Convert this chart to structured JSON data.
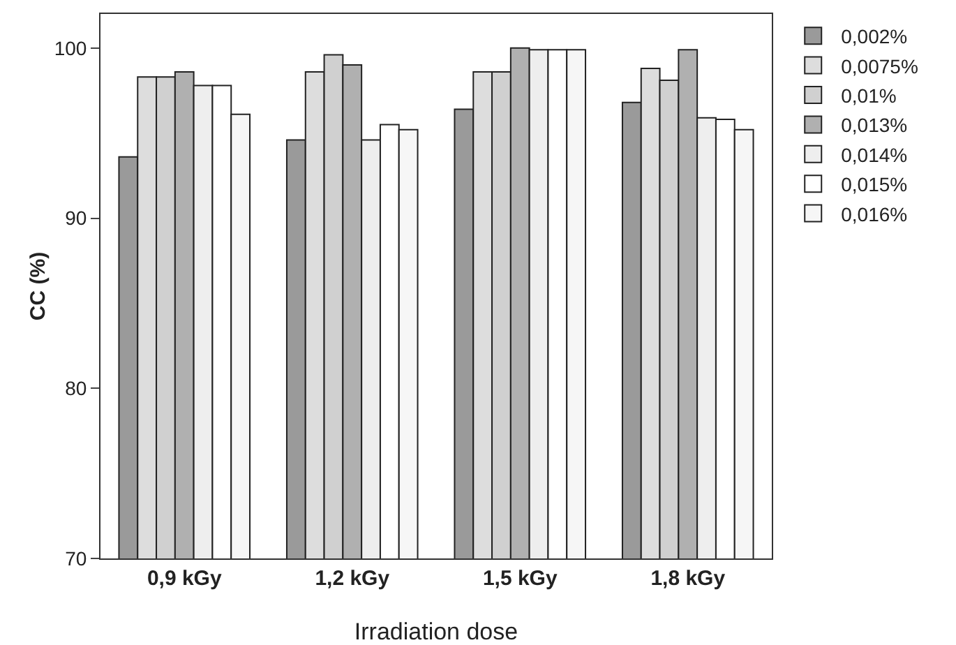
{
  "chart_data": {
    "type": "bar",
    "xlabel": "Irradiation dose",
    "ylabel": "CC (%)",
    "categories": [
      "0,9 kGy",
      "1,2 kGy",
      "1,5 kGy",
      "1,8 kGy"
    ],
    "series": [
      {
        "name": "0,002%",
        "color": "#9a9a9a",
        "values": [
          93.6,
          94.6,
          96.4,
          96.8
        ]
      },
      {
        "name": "0,0075%",
        "color": "#dddddd",
        "values": [
          98.3,
          98.6,
          98.6,
          98.8
        ]
      },
      {
        "name": "0,01%",
        "color": "#d0d0d0",
        "values": [
          98.3,
          99.6,
          98.6,
          98.1
        ]
      },
      {
        "name": "0,013%",
        "color": "#b0b0b0",
        "values": [
          98.6,
          99.0,
          100,
          99.9
        ]
      },
      {
        "name": "0,014%",
        "color": "#eeeeee",
        "values": [
          97.8,
          94.6,
          99.9,
          95.9
        ]
      },
      {
        "name": "0,015%",
        "color": "#ffffff",
        "values": [
          97.8,
          95.5,
          99.9,
          95.8
        ]
      },
      {
        "name": "0,016%",
        "color": "#f6f6f6",
        "values": [
          96.1,
          95.2,
          99.9,
          95.2
        ]
      }
    ],
    "ylim": [
      70,
      102
    ],
    "yticks": [
      70,
      80,
      90,
      100
    ],
    "grid": false,
    "legend": "top right"
  }
}
